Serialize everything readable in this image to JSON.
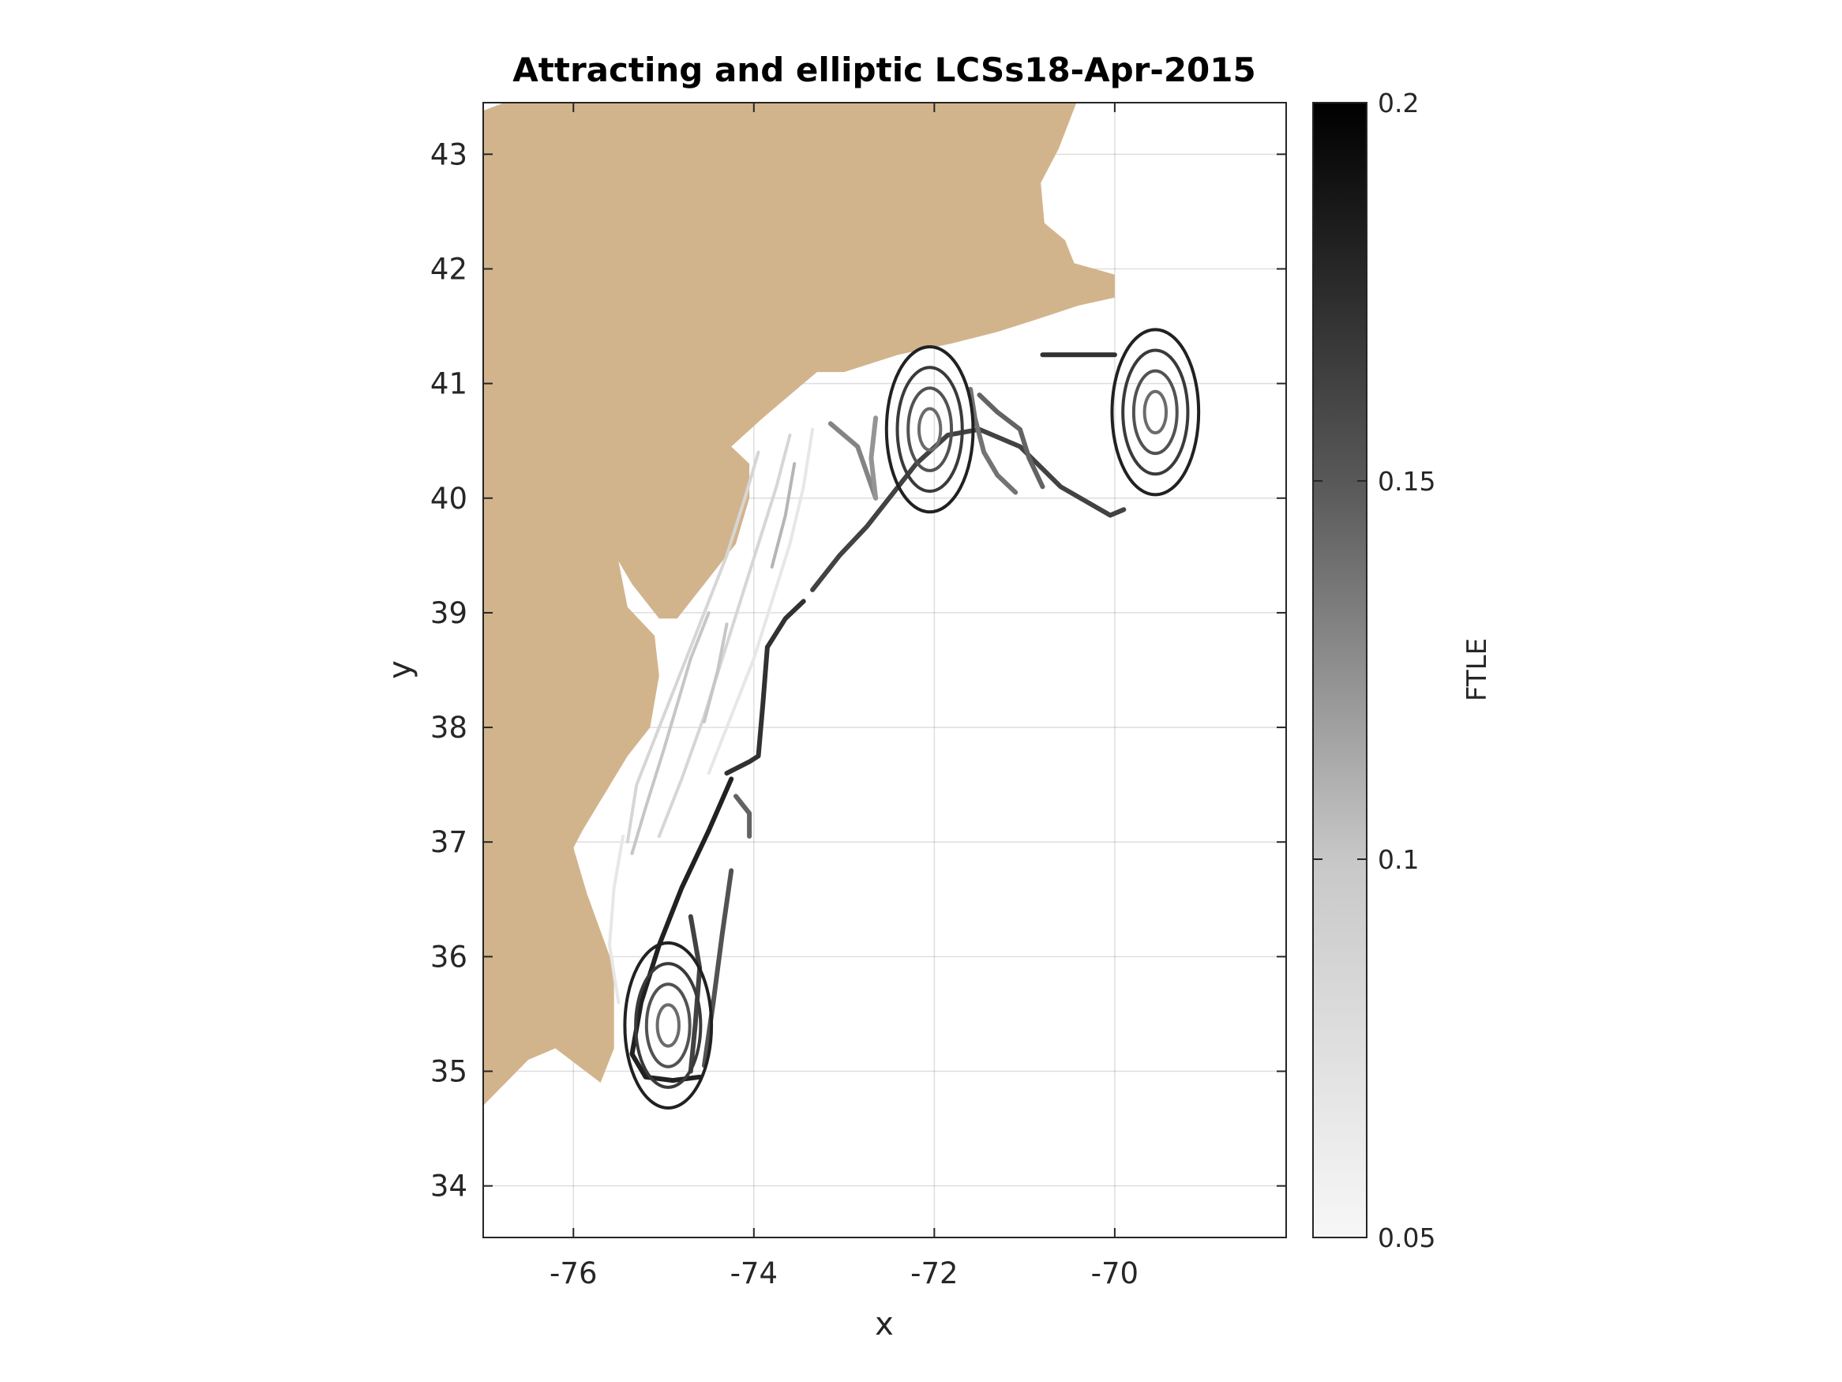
{
  "title": "Attracting and elliptic LCSs18-Apr-2015",
  "xlabel": "x",
  "ylabel": "y",
  "colorbar_label": "FTLE",
  "xticks": [
    "-76",
    "-74",
    "-72",
    "-70"
  ],
  "yticks": [
    "34",
    "35",
    "36",
    "37",
    "38",
    "39",
    "40",
    "41",
    "42",
    "43"
  ],
  "colorbar_ticks": [
    "0.05",
    "0.1",
    "0.15",
    "0.2"
  ],
  "colors": {
    "land": "#D2B48C",
    "ocean": "#ffffff",
    "colormap_low": "#f7f7f7",
    "colormap_high": "#000000"
  },
  "chart_data": {
    "type": "heatmap",
    "title": "Attracting and elliptic LCSs18-Apr-2015",
    "xlabel": "x",
    "ylabel": "y",
    "xlim": [
      -77,
      -68.1
    ],
    "ylim": [
      33.55,
      43.45
    ],
    "xticks": [
      -76,
      -74,
      -72,
      -70
    ],
    "yticks": [
      34,
      35,
      36,
      37,
      38,
      39,
      40,
      41,
      42,
      43
    ],
    "grid": true,
    "colorbar": {
      "label": "FTLE",
      "range": [
        0.05,
        0.2
      ],
      "ticks": [
        0.05,
        0.1,
        0.15,
        0.2
      ],
      "colormap": "gray (reversed)"
    },
    "land_outline": [
      [
        -77,
        43.38
      ],
      [
        -76.6,
        43.5
      ],
      [
        -70.4,
        43.5
      ],
      [
        -70.62,
        43.05
      ],
      [
        -70.82,
        42.75
      ],
      [
        -70.78,
        42.4
      ],
      [
        -70.55,
        42.25
      ],
      [
        -70.45,
        42.05
      ],
      [
        -70.0,
        41.95
      ],
      [
        -70.0,
        41.75
      ],
      [
        -70.4,
        41.68
      ],
      [
        -70.9,
        41.55
      ],
      [
        -71.3,
        41.45
      ],
      [
        -71.8,
        41.35
      ],
      [
        -72.4,
        41.25
      ],
      [
        -73.0,
        41.1
      ],
      [
        -73.3,
        41.1
      ],
      [
        -73.6,
        40.9
      ],
      [
        -73.9,
        40.7
      ],
      [
        -74.25,
        40.45
      ],
      [
        -74.05,
        40.3
      ],
      [
        -74.05,
        40.0
      ],
      [
        -74.2,
        39.6
      ],
      [
        -74.5,
        39.3
      ],
      [
        -74.85,
        38.95
      ],
      [
        -75.05,
        38.95
      ],
      [
        -75.35,
        39.25
      ],
      [
        -75.5,
        39.45
      ],
      [
        -75.4,
        39.05
      ],
      [
        -75.1,
        38.8
      ],
      [
        -75.05,
        38.45
      ],
      [
        -75.15,
        38.0
      ],
      [
        -75.4,
        37.75
      ],
      [
        -75.9,
        37.1
      ],
      [
        -76.0,
        36.95
      ],
      [
        -75.85,
        36.55
      ],
      [
        -75.55,
        35.9
      ],
      [
        -75.55,
        35.2
      ],
      [
        -75.7,
        34.9
      ],
      [
        -76.2,
        35.2
      ],
      [
        -76.5,
        35.1
      ],
      [
        -77,
        34.7
      ]
    ],
    "elliptic_lcs_centers": [
      [
        -69.55,
        40.75
      ],
      [
        -72.05,
        40.6
      ],
      [
        -74.95,
        35.4
      ]
    ],
    "attracting_lcs_paths": [
      {
        "ftle": 0.18,
        "points": [
          [
            -74.25,
            37.55
          ],
          [
            -74.5,
            37.1
          ],
          [
            -74.8,
            36.6
          ],
          [
            -75.05,
            36.1
          ],
          [
            -75.25,
            35.6
          ],
          [
            -75.35,
            35.15
          ],
          [
            -75.2,
            34.95
          ],
          [
            -74.9,
            34.92
          ],
          [
            -74.6,
            34.95
          ]
        ]
      },
      {
        "ftle": 0.17,
        "points": [
          [
            -73.85,
            38.7
          ],
          [
            -73.9,
            38.2
          ],
          [
            -73.95,
            37.75
          ],
          [
            -74.05,
            37.7
          ],
          [
            -74.3,
            37.6
          ]
        ]
      },
      {
        "ftle": 0.17,
        "points": [
          [
            -73.45,
            39.1
          ],
          [
            -73.65,
            38.95
          ],
          [
            -73.85,
            38.7
          ]
        ]
      },
      {
        "ftle": 0.16,
        "points": [
          [
            -73.35,
            39.2
          ],
          [
            -73.05,
            39.5
          ],
          [
            -72.75,
            39.75
          ],
          [
            -72.45,
            40.05
          ],
          [
            -72.2,
            40.3
          ],
          [
            -71.85,
            40.55
          ],
          [
            -71.5,
            40.6
          ],
          [
            -71.05,
            40.45
          ],
          [
            -70.6,
            40.1
          ],
          [
            -70.05,
            39.85
          ],
          [
            -69.9,
            39.9
          ]
        ]
      },
      {
        "ftle": 0.17,
        "points": [
          [
            -70.8,
            41.25
          ],
          [
            -70.35,
            41.25
          ],
          [
            -70.0,
            41.25
          ]
        ]
      },
      {
        "ftle": 0.16,
        "points": [
          [
            -74.7,
            36.35
          ],
          [
            -74.6,
            35.9
          ],
          [
            -74.65,
            35.4
          ],
          [
            -74.7,
            35.0
          ]
        ]
      },
      {
        "ftle": 0.15,
        "points": [
          [
            -74.25,
            36.75
          ],
          [
            -74.35,
            36.2
          ],
          [
            -74.45,
            35.6
          ],
          [
            -74.55,
            35.05
          ]
        ]
      },
      {
        "ftle": 0.14,
        "points": [
          [
            -74.05,
            37.05
          ],
          [
            -74.05,
            37.25
          ],
          [
            -74.2,
            37.4
          ]
        ]
      },
      {
        "ftle": 0.12,
        "points": [
          [
            -73.15,
            40.65
          ],
          [
            -72.85,
            40.45
          ],
          [
            -72.65,
            40.0
          ]
        ]
      },
      {
        "ftle": 0.11,
        "points": [
          [
            -72.65,
            40.7
          ],
          [
            -72.7,
            40.35
          ],
          [
            -72.65,
            40.0
          ]
        ]
      },
      {
        "ftle": 0.14,
        "points": [
          [
            -71.5,
            40.9
          ],
          [
            -71.3,
            40.75
          ],
          [
            -71.05,
            40.6
          ],
          [
            -70.95,
            40.35
          ],
          [
            -70.8,
            40.1
          ]
        ]
      },
      {
        "ftle": 0.13,
        "points": [
          [
            -71.6,
            40.95
          ],
          [
            -71.55,
            40.7
          ],
          [
            -71.45,
            40.4
          ],
          [
            -71.3,
            40.2
          ],
          [
            -71.1,
            40.05
          ]
        ]
      },
      {
        "ftle": 0.07,
        "points": [
          [
            -73.95,
            40.4
          ],
          [
            -74.1,
            40.0
          ],
          [
            -74.3,
            39.5
          ],
          [
            -74.55,
            39.0
          ],
          [
            -74.8,
            38.5
          ],
          [
            -75.05,
            38.0
          ],
          [
            -75.3,
            37.5
          ],
          [
            -75.4,
            37.0
          ]
        ]
      },
      {
        "ftle": 0.07,
        "points": [
          [
            -73.6,
            40.55
          ],
          [
            -73.75,
            40.1
          ],
          [
            -73.95,
            39.6
          ],
          [
            -74.15,
            39.1
          ],
          [
            -74.35,
            38.6
          ],
          [
            -74.55,
            38.1
          ],
          [
            -74.8,
            37.55
          ],
          [
            -75.05,
            37.05
          ]
        ]
      },
      {
        "ftle": 0.06,
        "points": [
          [
            -73.35,
            40.6
          ],
          [
            -73.45,
            40.1
          ],
          [
            -73.6,
            39.6
          ],
          [
            -73.8,
            39.1
          ],
          [
            -74.0,
            38.6
          ],
          [
            -74.25,
            38.1
          ],
          [
            -74.5,
            37.6
          ]
        ]
      },
      {
        "ftle": 0.08,
        "points": [
          [
            -74.5,
            39.0
          ],
          [
            -74.7,
            38.6
          ],
          [
            -74.85,
            38.2
          ],
          [
            -75.0,
            37.8
          ],
          [
            -75.2,
            37.3
          ],
          [
            -75.35,
            36.9
          ]
        ]
      },
      {
        "ftle": 0.06,
        "points": [
          [
            -75.45,
            37.05
          ],
          [
            -75.55,
            36.6
          ],
          [
            -75.6,
            36.1
          ],
          [
            -75.5,
            35.6
          ]
        ]
      },
      {
        "ftle": 0.09,
        "points": [
          [
            -73.55,
            40.3
          ],
          [
            -73.65,
            39.85
          ],
          [
            -73.8,
            39.4
          ]
        ]
      },
      {
        "ftle": 0.08,
        "points": [
          [
            -74.3,
            38.9
          ],
          [
            -74.4,
            38.5
          ],
          [
            -74.55,
            38.05
          ]
        ]
      }
    ]
  }
}
